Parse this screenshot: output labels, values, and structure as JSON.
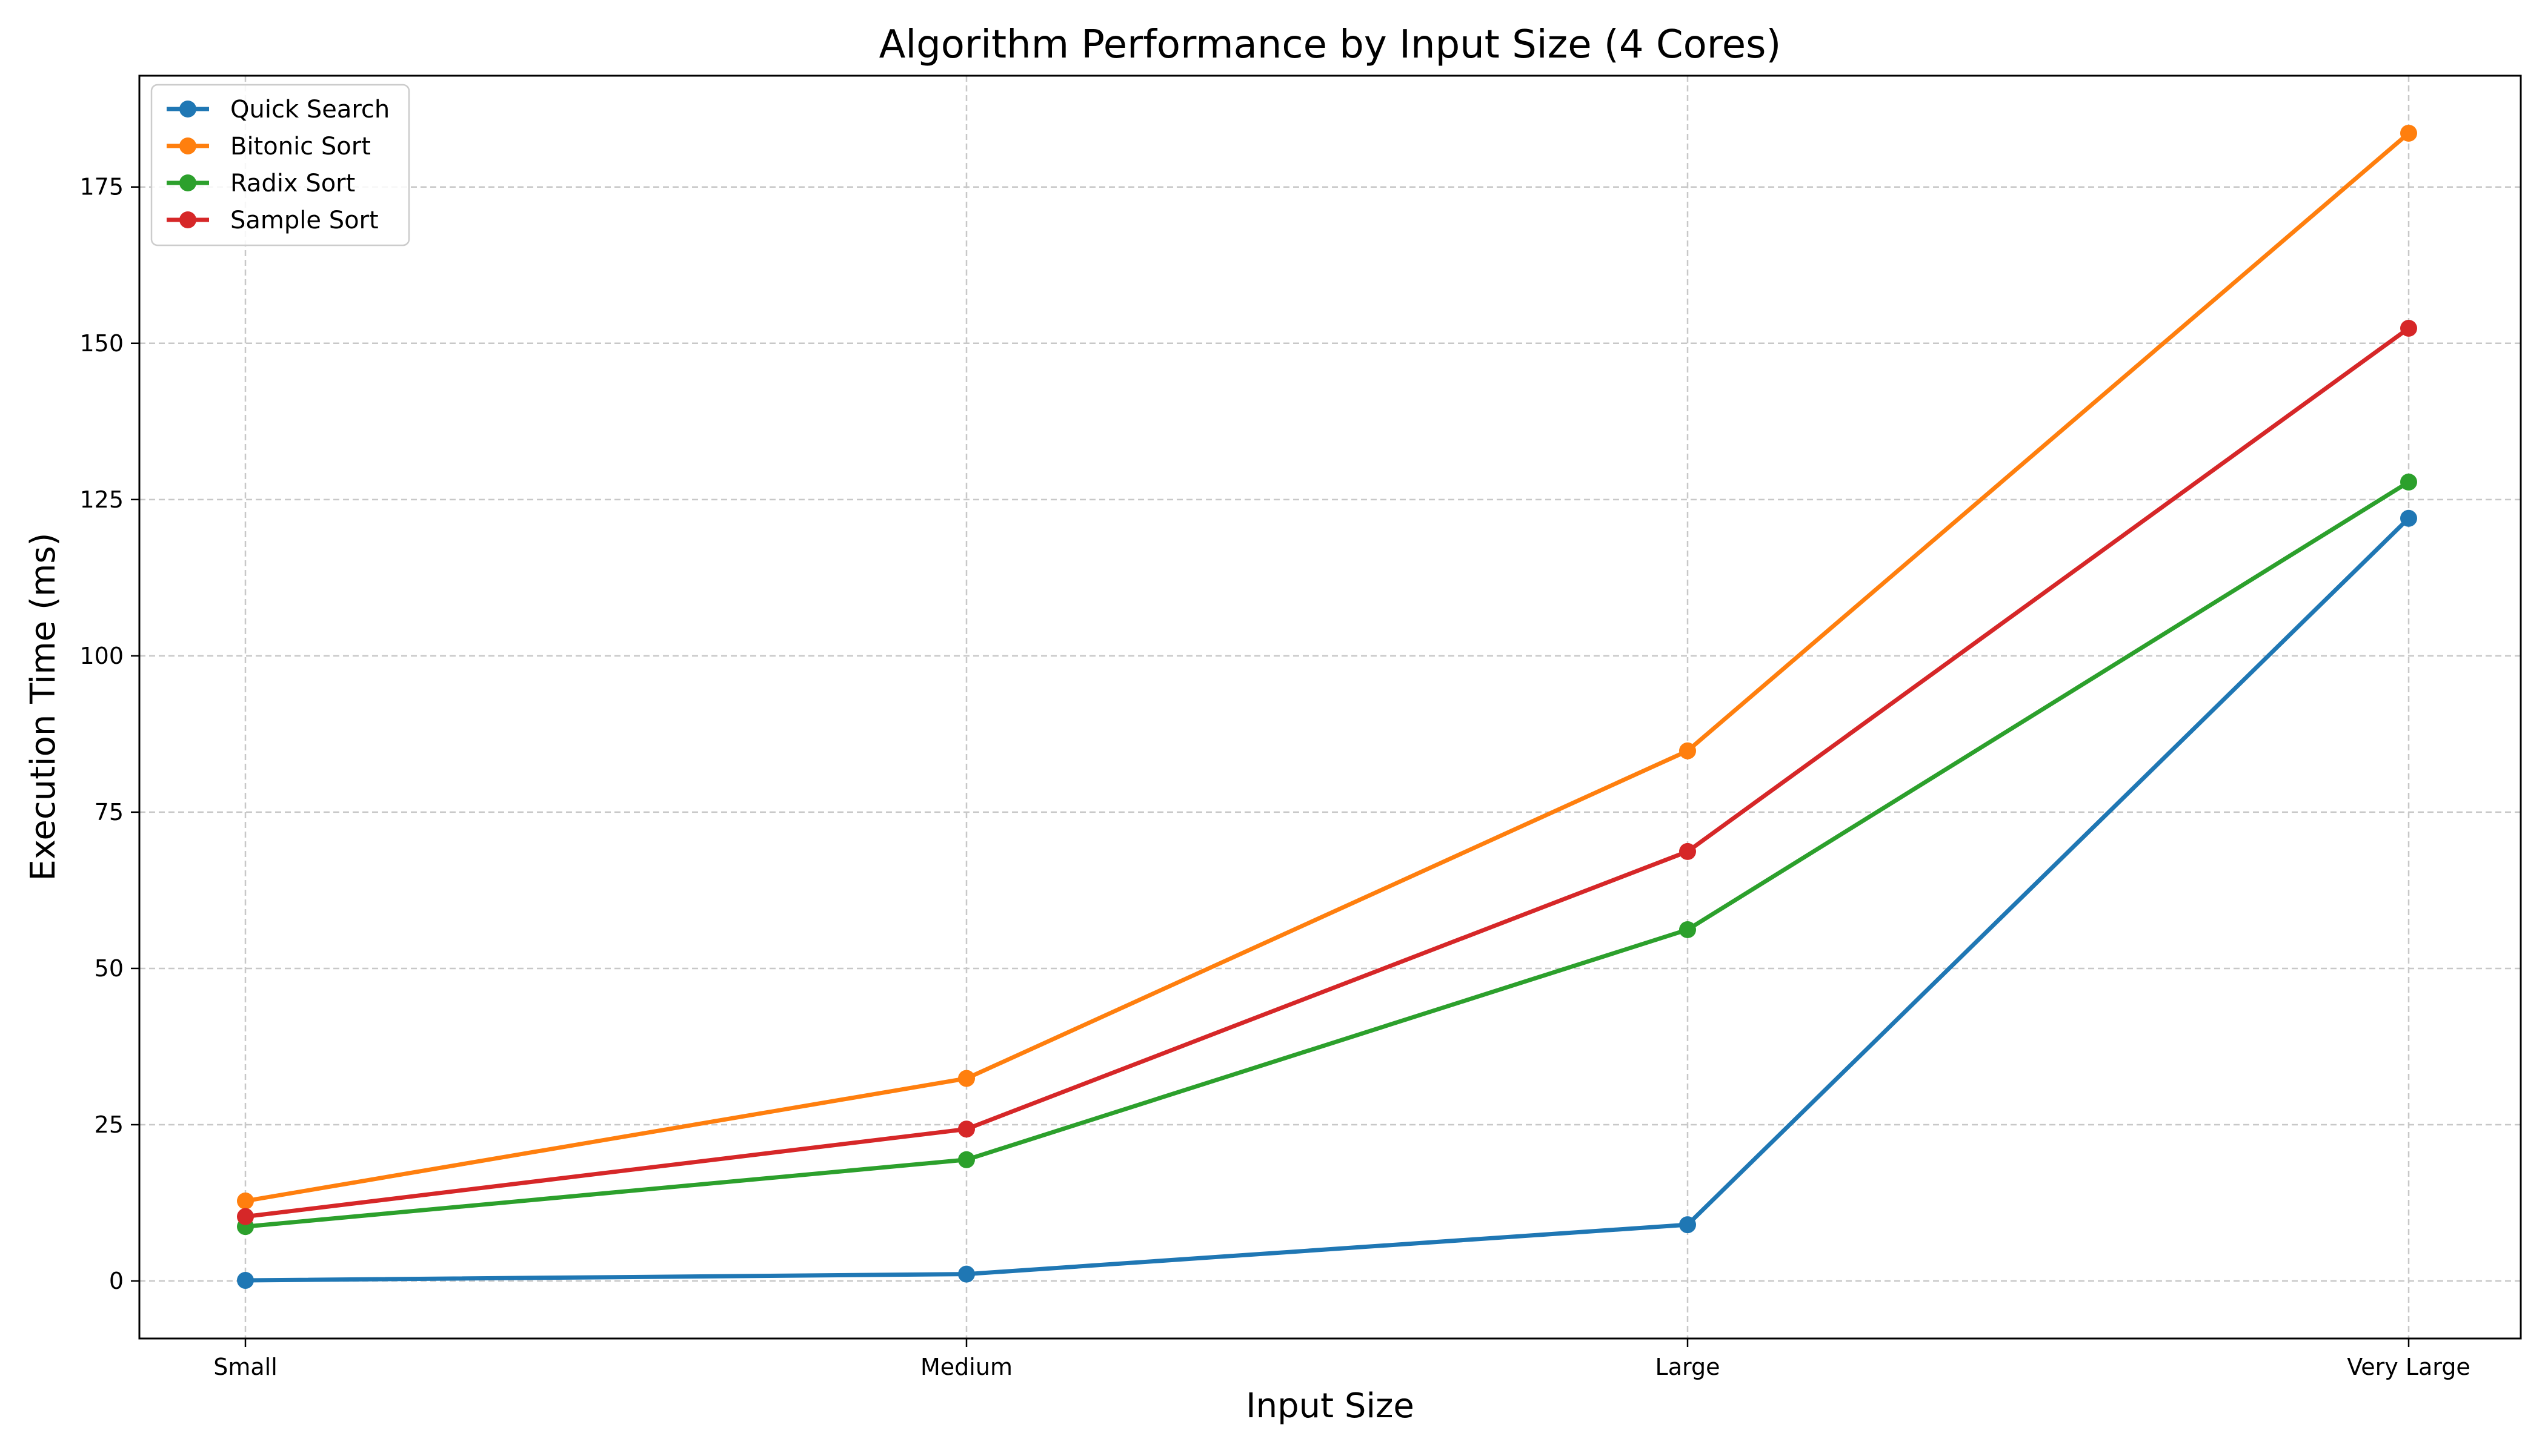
{
  "chart_data": {
    "type": "line",
    "title": "Algorithm Performance by Input Size (4 Cores)",
    "xlabel": "Input Size",
    "ylabel": "Execution Time (ms)",
    "categories": [
      "Small",
      "Medium",
      "Large",
      "Very Large"
    ],
    "ylim": [
      -9.2,
      192.8
    ],
    "yticks": [
      0,
      25,
      50,
      75,
      100,
      125,
      150,
      175
    ],
    "grid": true,
    "legend_position": "top-left",
    "series": [
      {
        "name": "Quick Search",
        "color": "#1f77b4",
        "values": [
          0.1,
          1.1,
          9.0,
          122.0
        ]
      },
      {
        "name": "Bitonic Sort",
        "color": "#ff7f0e",
        "values": [
          12.8,
          32.4,
          84.8,
          183.6
        ]
      },
      {
        "name": "Radix Sort",
        "color": "#2ca02c",
        "values": [
          8.7,
          19.4,
          56.2,
          127.8
        ]
      },
      {
        "name": "Sample Sort",
        "color": "#d62728",
        "values": [
          10.3,
          24.3,
          68.7,
          152.4
        ]
      }
    ]
  }
}
